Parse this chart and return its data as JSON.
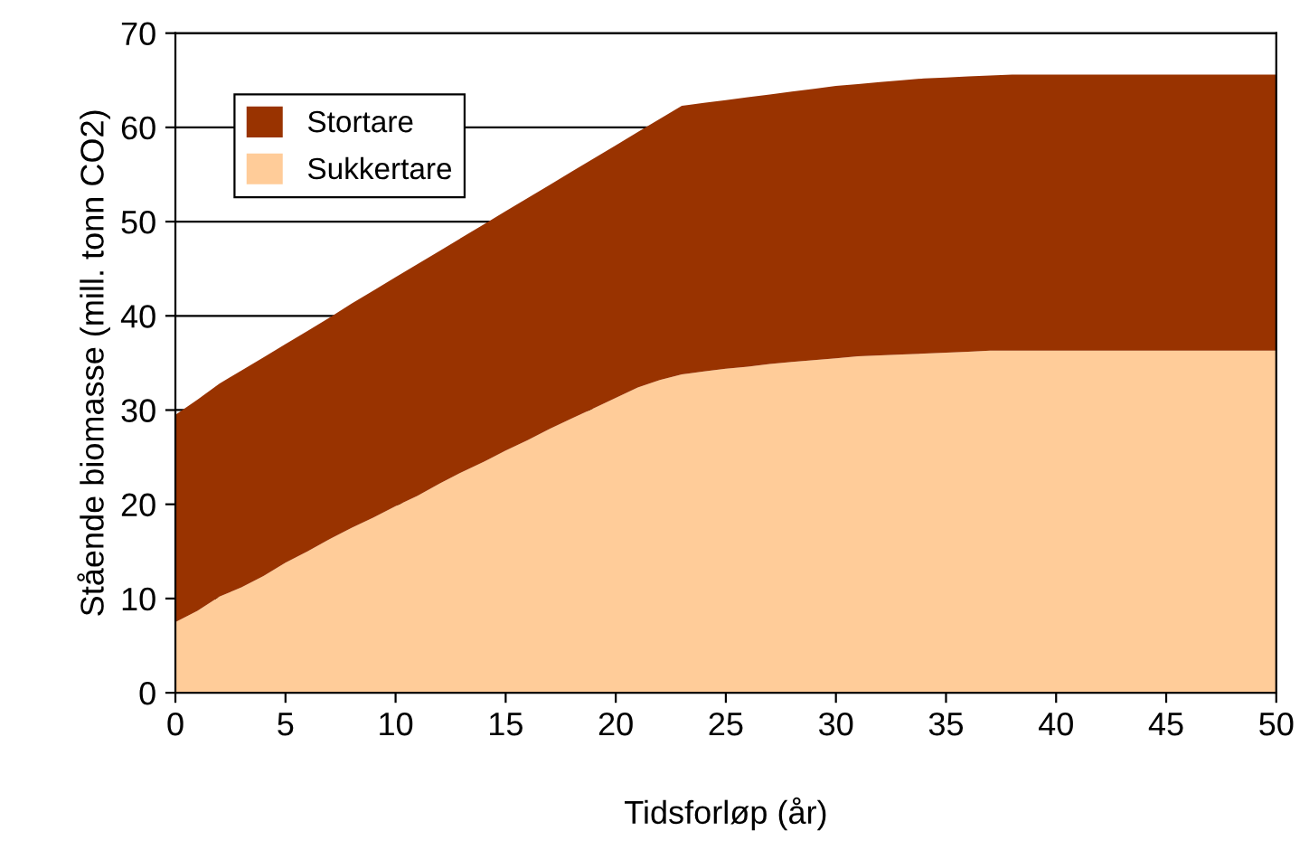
{
  "chart_data": {
    "type": "area",
    "stacked": true,
    "xlabel": "Tidsforløp (år)",
    "ylabel": "Stående biomasse (mill. tonn CO2)",
    "x": [
      0,
      1,
      2,
      3,
      4,
      5,
      6,
      7,
      8,
      9,
      10,
      11,
      12,
      13,
      14,
      15,
      16,
      17,
      18,
      19,
      20,
      21,
      22,
      23,
      24,
      25,
      26,
      27,
      28,
      29,
      30,
      31,
      32,
      33,
      34,
      35,
      36,
      37,
      38,
      39,
      40,
      41,
      42,
      43,
      44,
      45,
      46,
      47,
      48,
      49,
      50
    ],
    "series": [
      {
        "name": "Sukkertare",
        "color": "#ffcc99",
        "values": [
          7.5,
          8.7,
          10.2,
          11.2,
          12.4,
          13.8,
          15.0,
          16.3,
          17.5,
          18.6,
          19.8,
          20.9,
          22.2,
          23.4,
          24.5,
          25.7,
          26.8,
          28.0,
          29.1,
          30.2,
          31.3,
          32.4,
          33.2,
          33.8,
          34.1,
          34.4,
          34.6,
          34.9,
          35.1,
          35.3,
          35.5,
          35.7,
          35.8,
          35.9,
          36.0,
          36.1,
          36.2,
          36.3,
          36.3,
          36.3,
          36.3,
          36.3,
          36.3,
          36.3,
          36.3,
          36.3,
          36.3,
          36.3,
          36.3,
          36.3,
          36.3
        ]
      },
      {
        "name": "Stortare",
        "color": "#993300",
        "values": [
          22.0,
          22.4,
          22.6,
          23.0,
          23.2,
          23.2,
          23.4,
          23.5,
          23.8,
          24.1,
          24.3,
          24.6,
          24.7,
          24.9,
          25.2,
          25.4,
          25.7,
          25.9,
          26.2,
          26.5,
          26.8,
          27.1,
          27.7,
          28.5,
          28.5,
          28.5,
          28.6,
          28.6,
          28.7,
          28.8,
          28.9,
          28.9,
          29.0,
          29.1,
          29.2,
          29.2,
          29.2,
          29.2,
          29.3,
          29.3,
          29.3,
          29.3,
          29.3,
          29.3,
          29.3,
          29.3,
          29.3,
          29.3,
          29.3,
          29.3,
          29.3
        ]
      }
    ],
    "xlim": [
      0,
      50
    ],
    "xticks": [
      0,
      5,
      10,
      15,
      20,
      25,
      30,
      35,
      40,
      45,
      50
    ],
    "ylim": [
      0,
      70
    ],
    "yticks": [
      0,
      10,
      20,
      30,
      40,
      50,
      60,
      70
    ],
    "grid": "y",
    "legend": "top left"
  }
}
